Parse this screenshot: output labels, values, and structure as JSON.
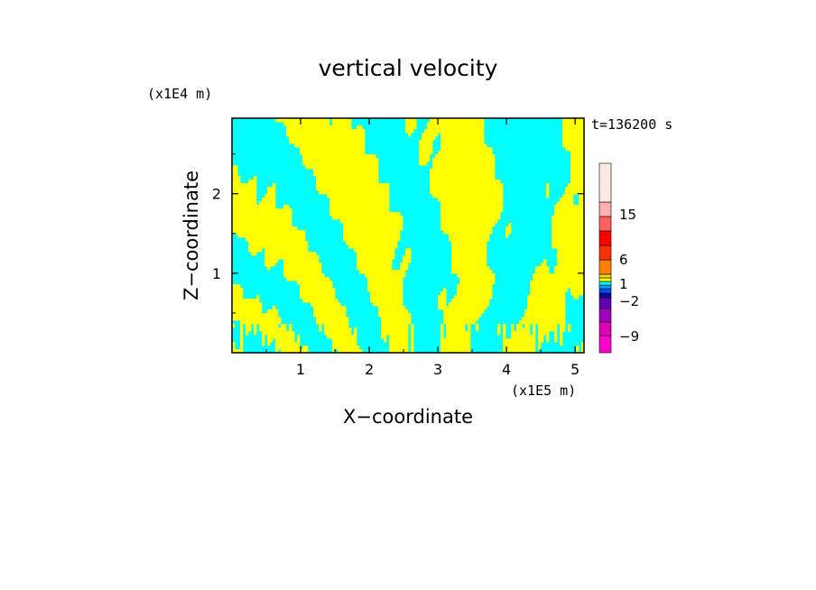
{
  "chart_data": {
    "type": "heatmap",
    "title": "vertical velocity",
    "xlabel": "X−coordinate",
    "ylabel": "Z−coordinate",
    "x_unit": "(x1E5 m)",
    "y_unit": "(x1E4 m)",
    "time_label": "t=136200 s",
    "xlim": [
      0,
      5.13
    ],
    "ylim": [
      0,
      2.95
    ],
    "x_ticks": [
      1,
      2,
      3,
      4,
      5
    ],
    "x_tick_labels": [
      "1",
      "2",
      "3",
      "4",
      "5"
    ],
    "y_ticks": [
      1,
      2
    ],
    "y_tick_labels": [
      "1",
      "2"
    ],
    "colorbar": {
      "levels": [
        -9,
        -2,
        1,
        6,
        15
      ],
      "level_labels": [
        "−9",
        "−2",
        "1",
        "6",
        "15"
      ],
      "colors": [
        "#ff00c8",
        "#d000b8",
        "#a000c8",
        "#6800b0",
        "#2000a8",
        "#0040ff",
        "#00c0ff",
        "#00ffff",
        "#ffff00",
        "#ffe000",
        "#ff8000",
        "#ff3000",
        "#ff0000",
        "#ff6060",
        "#ffb0b0",
        "#ffe8e8"
      ],
      "fields_visible": [
        "#ffff00",
        "#00ffff"
      ]
    }
  }
}
